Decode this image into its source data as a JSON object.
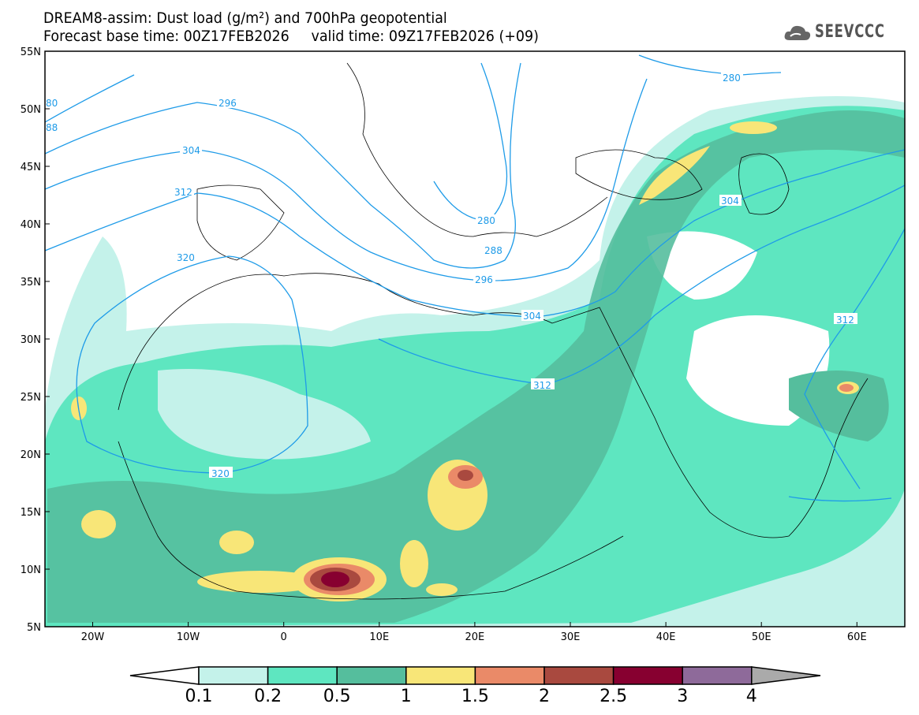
{
  "title": {
    "line1": "DREAM8-assim: Dust load (g/m²) and 700hPa geopotential",
    "line2": "Forecast base time: 00Z17FEB2026     valid time: 09Z17FEB2026 (+09)"
  },
  "logo": {
    "text": "SEEVCCC",
    "icon": "cloud-icon"
  },
  "map": {
    "lat_labels": [
      "55N",
      "50N",
      "45N",
      "40N",
      "35N",
      "30N",
      "25N",
      "20N",
      "15N",
      "10N",
      "5N"
    ],
    "lon_labels": [
      "20W",
      "10W",
      "0",
      "10E",
      "20E",
      "30E",
      "40E",
      "50E",
      "60E"
    ],
    "contour_labels": {
      "c280": "280",
      "c288": "288",
      "c296": "296",
      "c304": "304",
      "c312": "312",
      "c320": "320",
      "c80": "80",
      "c88": "88"
    },
    "contour_color": "#1e9be8"
  },
  "colorbar": {
    "colors": [
      "#c4f2ea",
      "#5ee6c0",
      "#55be9d",
      "#f8e678",
      "#ea8a68",
      "#a9493f",
      "#870030",
      "#8e6a9a"
    ],
    "labels": [
      "0.1",
      "0.2",
      "0.5",
      "1",
      "1.5",
      "2",
      "2.5",
      "3",
      "4"
    ],
    "over_color": "#aaaaaa"
  }
}
